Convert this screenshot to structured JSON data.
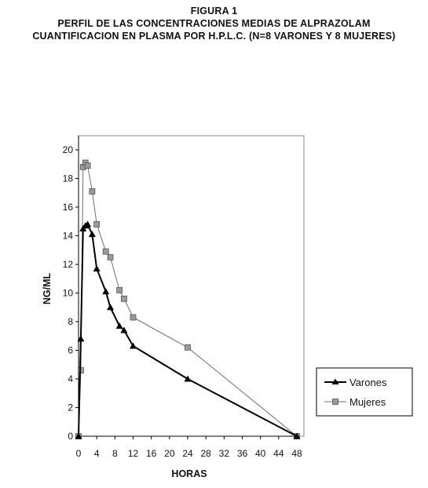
{
  "titles": {
    "line1": "FIGURA 1",
    "line2": "PERFIL DE LAS CONCENTRACIONES MEDIAS DE ALPRAZOLAM",
    "line3": "CUANTIFICACION EN PLASMA POR H.P.L.C. (N=8 VARONES Y 8 MUJERES)"
  },
  "chart_data": {
    "type": "line",
    "xlabel": "HORAS",
    "ylabel": "NG/ML",
    "xlim": [
      0,
      48
    ],
    "ylim": [
      0,
      20
    ],
    "xticks": [
      0,
      4,
      8,
      12,
      16,
      20,
      24,
      28,
      32,
      36,
      40,
      44,
      48
    ],
    "yticks": [
      0,
      2,
      4,
      6,
      8,
      10,
      12,
      14,
      16,
      18,
      20
    ],
    "grid": false,
    "legend_position": "right",
    "series": [
      {
        "name": "Varones",
        "marker": "triangle",
        "color": "#000000",
        "x": [
          0,
          0.5,
          1,
          1.5,
          2,
          3,
          4,
          6,
          7,
          9,
          10,
          12,
          24,
          48
        ],
        "y": [
          0,
          6.8,
          14.5,
          14.7,
          14.8,
          14.1,
          11.7,
          10.1,
          9.0,
          7.7,
          7.4,
          6.3,
          4.0,
          0
        ]
      },
      {
        "name": "Mujeres",
        "marker": "square",
        "color": "#6e6e6e",
        "x": [
          0,
          0.5,
          1,
          1.5,
          2,
          3,
          4,
          6,
          7,
          9,
          10,
          12,
          24,
          48
        ],
        "y": [
          0,
          4.6,
          18.8,
          19.1,
          18.9,
          17.1,
          14.8,
          12.9,
          12.5,
          10.2,
          9.6,
          8.3,
          6.2,
          0
        ]
      }
    ]
  }
}
